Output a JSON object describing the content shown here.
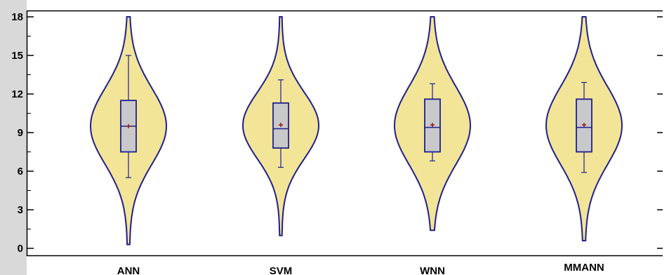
{
  "chart_data": {
    "type": "violin",
    "title": "",
    "xlabel": "",
    "ylabel": "",
    "ylim": [
      0,
      18
    ],
    "yticks": [
      0,
      3,
      6,
      9,
      12,
      15,
      18
    ],
    "grid": false,
    "legend": "none",
    "categories": [
      "ANN",
      "SVM",
      "WNN",
      "MMANN"
    ],
    "series": [
      {
        "category": "ANN",
        "min": 0.3,
        "max": 18,
        "whisker_low": 5.5,
        "whisker_high": 15.0,
        "q1": 7.5,
        "median": 9.5,
        "q3": 11.5,
        "mean": 9.5
      },
      {
        "category": "SVM",
        "min": 1.0,
        "max": 18,
        "whisker_low": 6.3,
        "whisker_high": 13.1,
        "q1": 7.8,
        "median": 9.3,
        "q3": 11.3,
        "mean": 9.6
      },
      {
        "category": "WNN",
        "min": 1.4,
        "max": 18,
        "whisker_low": 6.8,
        "whisker_high": 12.8,
        "q1": 7.5,
        "median": 9.4,
        "q3": 11.6,
        "mean": 9.6
      },
      {
        "category": "MMANN",
        "min": 0.6,
        "max": 18,
        "whisker_low": 5.9,
        "whisker_high": 12.9,
        "q1": 7.5,
        "median": 9.4,
        "q3": 11.6,
        "mean": 9.6
      }
    ],
    "colors": {
      "violin_fill": "#f2e597",
      "violin_stroke": "#1f1f8f",
      "box_fill": "#c9c9c9",
      "box_stroke": "#1f1f8f",
      "mean_marker": "#8b1a1a",
      "axis": "#000000",
      "axis_band": "#d9d9d9"
    }
  }
}
